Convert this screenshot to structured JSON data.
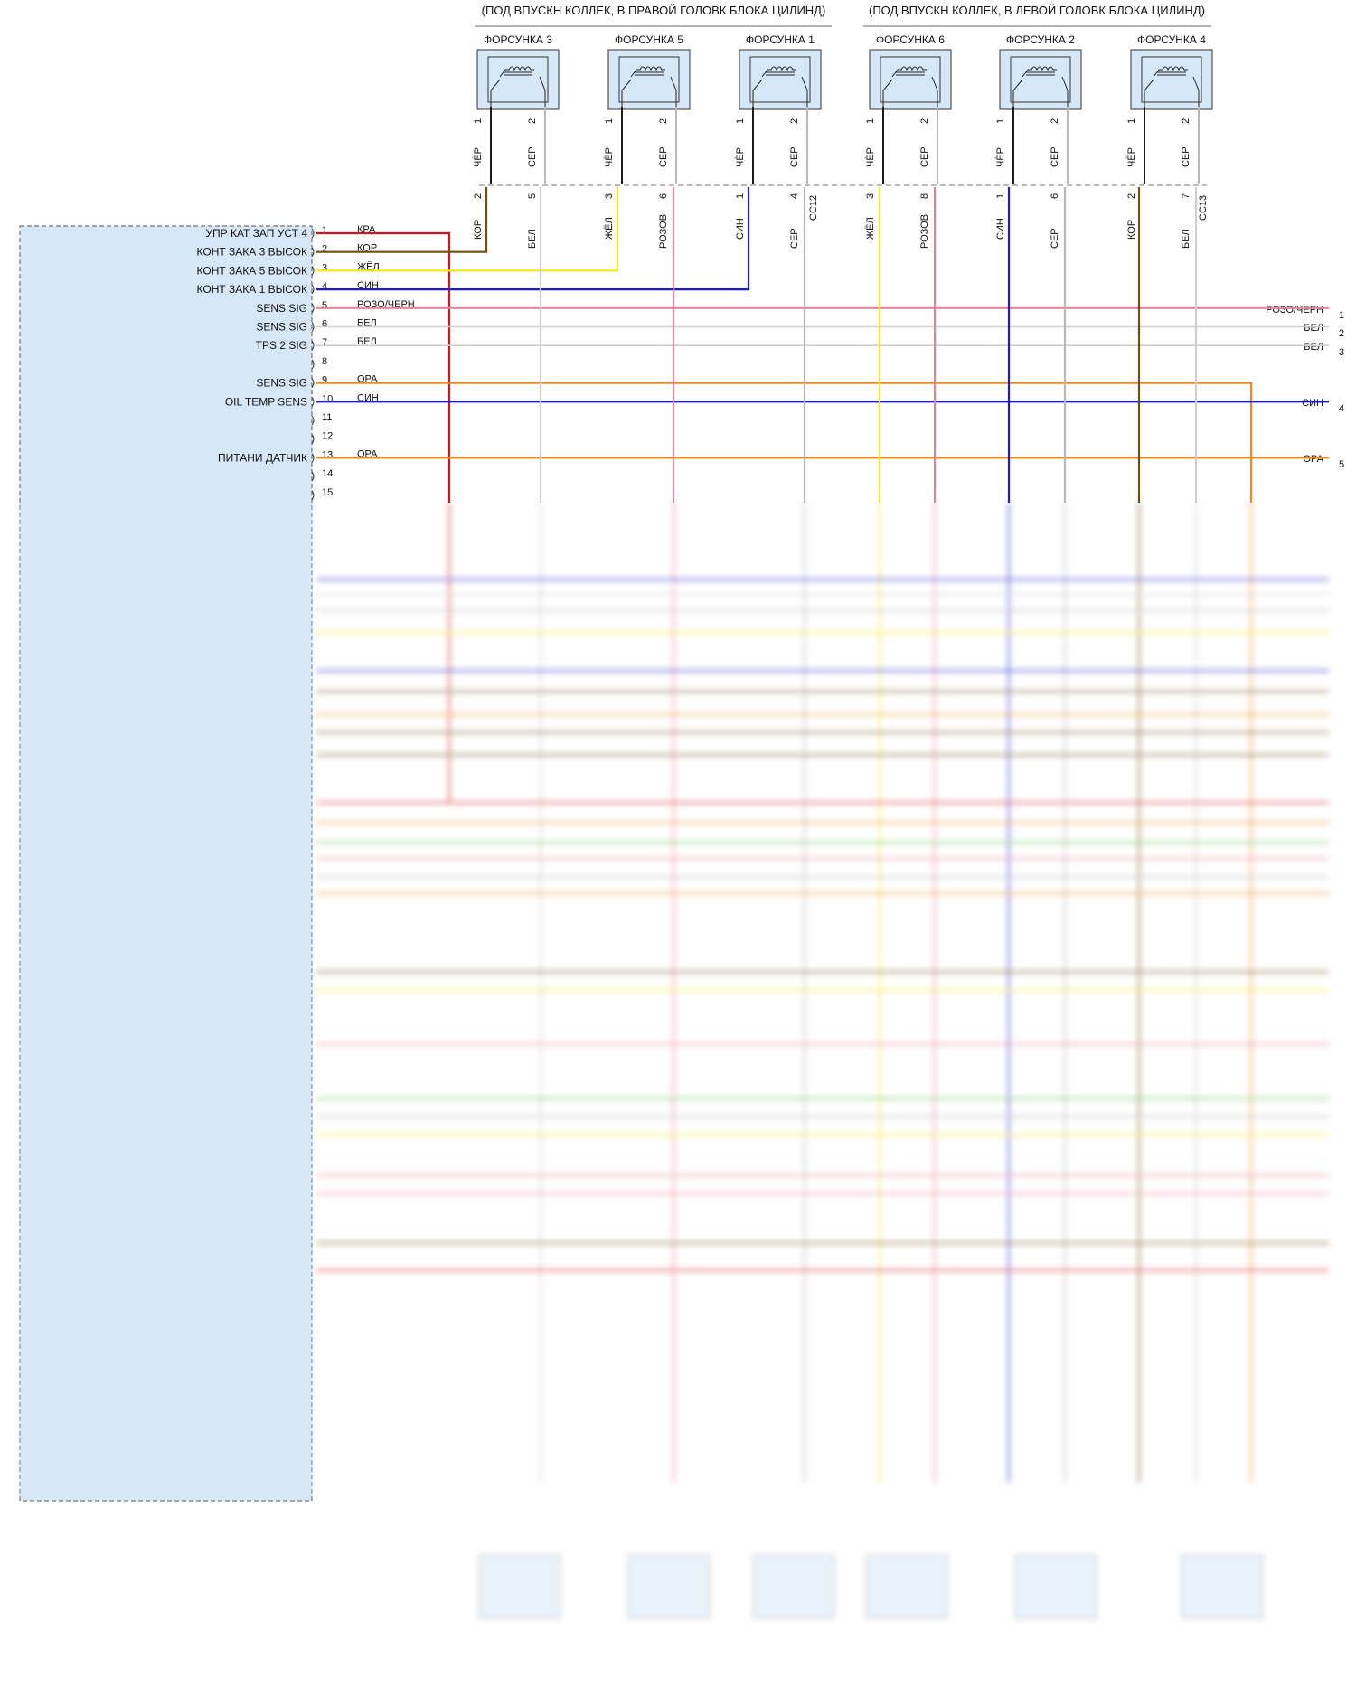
{
  "headers": {
    "right_bank": "(ПОД ВПУСКН КОЛЛЕК, В ПРАВОЙ ГОЛОВК БЛОКА ЦИЛИНД)",
    "left_bank": "(ПОД ВПУСКН КОЛЛЕК, В ЛЕВОЙ ГОЛОВК БЛОКА ЦИЛИНД)"
  },
  "injectors": [
    {
      "name": "ФОРСУНКА 3",
      "pin1_wire": "ЧЁР",
      "pin2_wire": "СЕР",
      "c_pin1": "2",
      "c_pin2": "5",
      "l_wire1": "КОР",
      "l_wire2": "БЕЛ"
    },
    {
      "name": "ФОРСУНКА 5",
      "pin1_wire": "ЧЁР",
      "pin2_wire": "СЕР",
      "c_pin1": "3",
      "c_pin2": "6",
      "l_wire1": "ЖЁЛ",
      "l_wire2": "РОЗОВ"
    },
    {
      "name": "ФОРСУНКА 1",
      "pin1_wire": "ЧЁР",
      "pin2_wire": "СЕР",
      "c_pin1": "1",
      "c_pin2": "4",
      "l_wire1": "СИН",
      "l_wire2": "СЕР"
    },
    {
      "name": "ФОРСУНКА 6",
      "pin1_wire": "ЧЁР",
      "pin2_wire": "СЕР",
      "c_pin1": "3",
      "c_pin2": "8",
      "l_wire1": "ЖЁЛ",
      "l_wire2": "РОЗОВ"
    },
    {
      "name": "ФОРСУНКА 2",
      "pin1_wire": "ЧЁР",
      "pin2_wire": "СЕР",
      "c_pin1": "1",
      "c_pin2": "6",
      "l_wire1": "СИН",
      "l_wire2": "СЕР"
    },
    {
      "name": "ФОРСУНКА 4",
      "pin1_wire": "ЧЁР",
      "pin2_wire": "СЕР",
      "c_pin1": "2",
      "c_pin2": "7",
      "l_wire1": "КОР",
      "l_wire2": "БЕЛ"
    }
  ],
  "connectors": {
    "c12": "CC12",
    "c13": "CC13"
  },
  "pcm_pins": [
    {
      "num": "1",
      "label": "УПР КАТ ЗАП УСТ 4",
      "wire": "КРА"
    },
    {
      "num": "2",
      "label": "КОНТ ЗАКА 3 ВЫСОК",
      "wire": "КОР"
    },
    {
      "num": "3",
      "label": "КОНТ ЗАКА 5 ВЫСОК",
      "wire": "ЖЁЛ"
    },
    {
      "num": "4",
      "label": "КОНТ ЗАКА 1 ВЫСОК",
      "wire": "СИН"
    },
    {
      "num": "5",
      "label": "SENS SIG",
      "wire": "РОЗО/ЧЕРН"
    },
    {
      "num": "6",
      "label": "SENS SIG",
      "wire": "БЕЛ"
    },
    {
      "num": "7",
      "label": "TPS 2 SIG",
      "wire": "БЕЛ"
    },
    {
      "num": "8",
      "label": "",
      "wire": ""
    },
    {
      "num": "9",
      "label": "SENS SIG",
      "wire": "ОРА"
    },
    {
      "num": "10",
      "label": "OIL TEMP SENS",
      "wire": "СИН"
    },
    {
      "num": "11",
      "label": "",
      "wire": ""
    },
    {
      "num": "12",
      "label": "",
      "wire": ""
    },
    {
      "num": "13",
      "label": "ПИТАНИ ДАТЧИК",
      "wire": "ОРА"
    },
    {
      "num": "14",
      "label": "",
      "wire": ""
    },
    {
      "num": "15",
      "label": "",
      "wire": ""
    }
  ],
  "right_outputs": [
    {
      "wire": "РОЗО/ЧЕРН",
      "num": "1"
    },
    {
      "wire": "БЕЛ",
      "num": "2"
    },
    {
      "wire": "БЕЛ",
      "num": "3"
    },
    {
      "wire": "СИН",
      "num": "4"
    },
    {
      "wire": "ОРА",
      "num": "5"
    }
  ],
  "colors": {
    "red": "#d8121c",
    "brown": "#6f4e0e",
    "yellow": "#f2ea1c",
    "blue": "#1b1bd0",
    "pink": "#e8849a",
    "white_wire": "#cfcfcf",
    "grey": "#b9b9b9",
    "orange": "#f08a1c",
    "black": "#1a1a1a",
    "green": "#5cc04a",
    "pcm_fill": "#d6e8f8"
  }
}
